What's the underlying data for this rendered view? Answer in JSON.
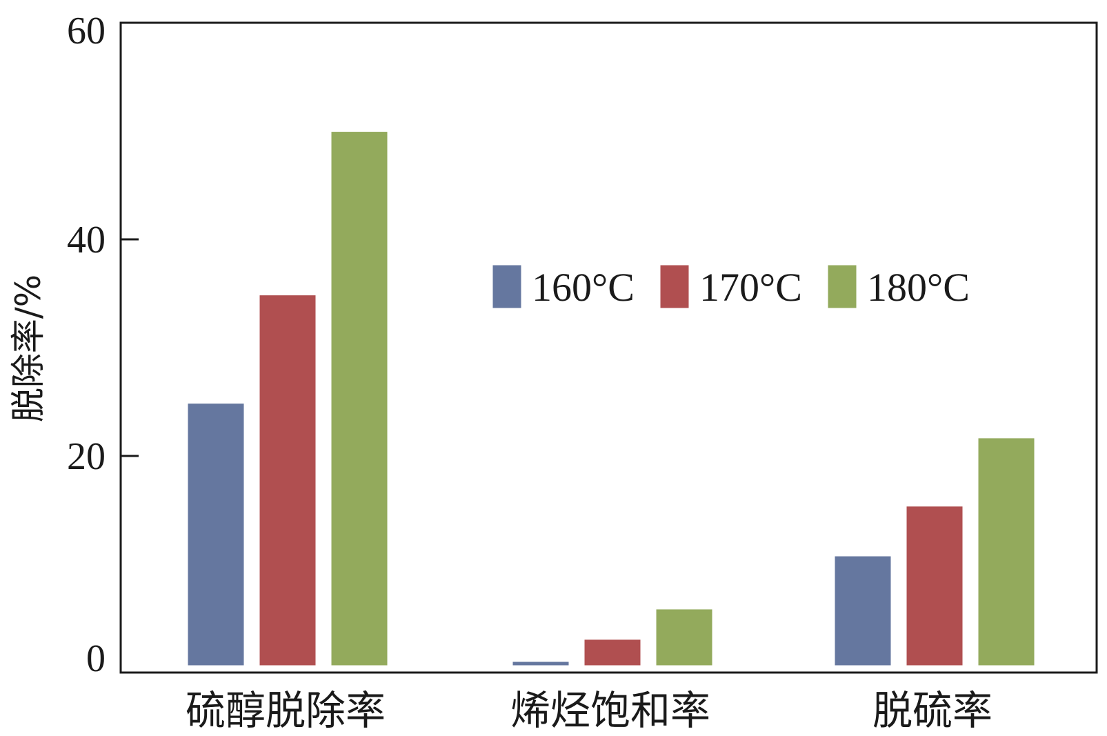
{
  "chart_data": {
    "type": "bar",
    "categories": [
      "硫醇脱除率",
      "烯烃饱和率",
      "脱硫率"
    ],
    "series": [
      {
        "name": "160°C",
        "color": "#65779f",
        "values": [
          24.8,
          0.9,
          10.7
        ]
      },
      {
        "name": "170°C",
        "color": "#b04f50",
        "values": [
          34.8,
          3.0,
          15.3
        ]
      },
      {
        "name": "180°C",
        "color": "#93aa5c",
        "values": [
          49.9,
          5.8,
          21.6
        ]
      }
    ],
    "title": "",
    "xlabel": "",
    "ylabel": "脱除率/%",
    "ylim": [
      0,
      60
    ],
    "yticks": [
      "0",
      "20",
      "40",
      "60"
    ],
    "legend_position": "upper-center",
    "grid": false
  }
}
